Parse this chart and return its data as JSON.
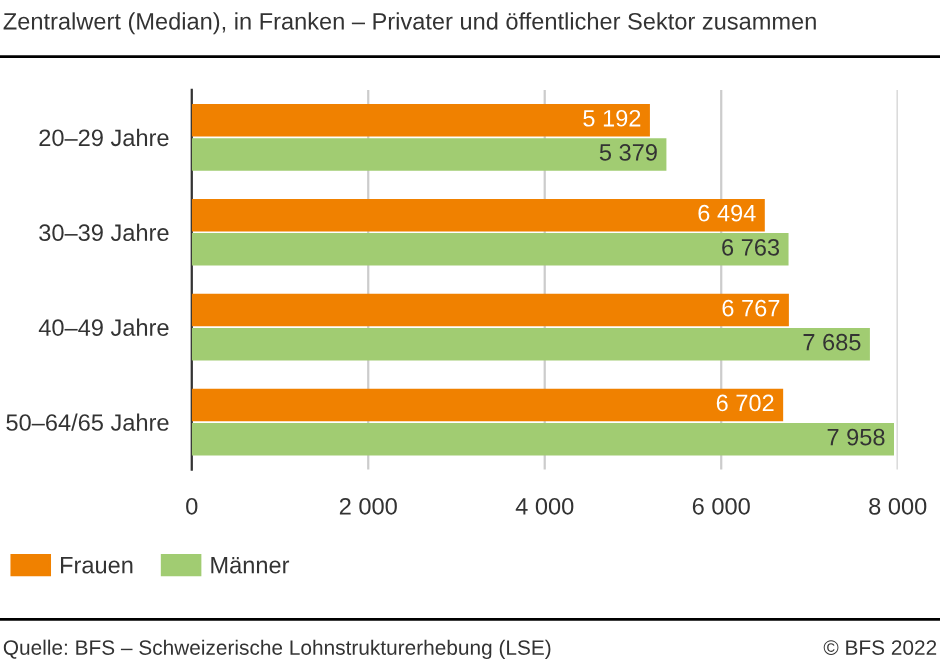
{
  "chart_data": {
    "type": "bar",
    "orientation": "horizontal",
    "title": "Zentralwert (Median), in Franken – Privater und öffentlicher Sektor zusammen",
    "categories": [
      "20–29 Jahre",
      "30–39 Jahre",
      "40–49 Jahre",
      "50–64/65 Jahre"
    ],
    "series": [
      {
        "name": "Frauen",
        "color": "#f08100",
        "values": [
          5192,
          6494,
          6767,
          6702
        ],
        "value_labels": [
          "5 192",
          "6 494",
          "6 767",
          "6 702"
        ]
      },
      {
        "name": "Männer",
        "color": "#a1cc72",
        "values": [
          5379,
          6763,
          7685,
          7958
        ],
        "value_labels": [
          "5 379",
          "6 763",
          "7 685",
          "7 958"
        ]
      }
    ],
    "xlim": [
      0,
      8000
    ],
    "xticks": [
      0,
      {
        "value": 2000,
        "label": "2 000"
      },
      {
        "value": 4000,
        "label": "4 000"
      },
      {
        "value": 6000,
        "label": "6 000"
      },
      {
        "value": 8000,
        "label": "8 000"
      }
    ],
    "grid": "x",
    "legend": "bottom left",
    "annotations": [
      "Quelle: BFS – Schweizerische Lohnstrukturerhebung (LSE)",
      "© BFS 2022"
    ]
  }
}
